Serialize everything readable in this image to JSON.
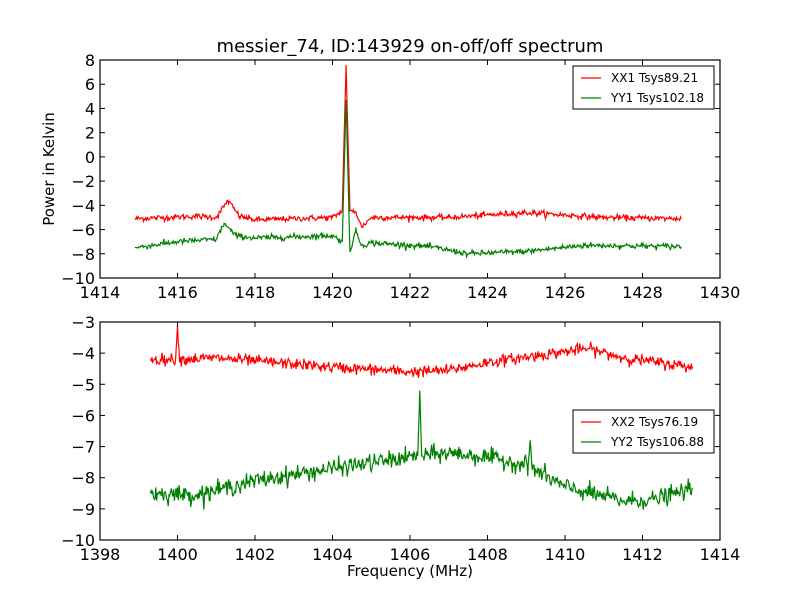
{
  "chart_data": [
    {
      "type": "line",
      "title": "messier_74, ID:143929 on-off/off spectrum",
      "xlabel": "",
      "ylabel": "Power in Kelvin",
      "xlim": [
        1414,
        1430
      ],
      "ylim": [
        -10,
        8
      ],
      "xticks": [
        "1414",
        "1416",
        "1418",
        "1420",
        "1422",
        "1424",
        "1426",
        "1428",
        "1430"
      ],
      "yticks": [
        "−10",
        "−8",
        "−6",
        "−4",
        "−2",
        "0",
        "2",
        "4",
        "6",
        "8"
      ],
      "grid": false,
      "legend_position": "top-right",
      "series": [
        {
          "name": "XX1 Tsys89.21",
          "color": "#ff0000",
          "noise": 0.12,
          "x_range": [
            1414.9,
            1429.0
          ],
          "trend": [
            [
              1414.9,
              -5.1
            ],
            [
              1416.5,
              -4.9
            ],
            [
              1417.0,
              -5.0
            ],
            [
              1417.3,
              -3.6
            ],
            [
              1417.6,
              -4.9
            ],
            [
              1418.0,
              -5.2
            ],
            [
              1420.0,
              -5.0
            ],
            [
              1420.25,
              -4.5
            ],
            [
              1420.35,
              7.6
            ],
            [
              1420.45,
              -4.5
            ],
            [
              1420.6,
              -4.5
            ],
            [
              1420.75,
              -5.8
            ],
            [
              1421.0,
              -5.0
            ],
            [
              1423.0,
              -5.0
            ],
            [
              1425.0,
              -4.6
            ],
            [
              1427.0,
              -5.0
            ],
            [
              1429.0,
              -5.1
            ]
          ]
        },
        {
          "name": "YY1 Tsys102.18",
          "color": "#008000",
          "noise": 0.12,
          "x_range": [
            1414.9,
            1429.0
          ],
          "trend": [
            [
              1414.9,
              -7.5
            ],
            [
              1416.0,
              -7.0
            ],
            [
              1417.0,
              -6.8
            ],
            [
              1417.2,
              -5.5
            ],
            [
              1417.5,
              -6.5
            ],
            [
              1418.0,
              -6.7
            ],
            [
              1420.0,
              -6.5
            ],
            [
              1420.25,
              -7.0
            ],
            [
              1420.35,
              4.7
            ],
            [
              1420.45,
              -7.8
            ],
            [
              1420.6,
              -6.1
            ],
            [
              1420.75,
              -7.3
            ],
            [
              1421.0,
              -7.1
            ],
            [
              1422.5,
              -7.4
            ],
            [
              1423.5,
              -8.0
            ],
            [
              1425.0,
              -7.8
            ],
            [
              1426.5,
              -7.3
            ],
            [
              1429.0,
              -7.4
            ]
          ]
        }
      ]
    },
    {
      "type": "line",
      "title": "",
      "xlabel": "Frequency (MHz)",
      "ylabel": "",
      "xlim": [
        1398,
        1414
      ],
      "ylim": [
        -10,
        -3
      ],
      "xticks": [
        "1398",
        "1400",
        "1402",
        "1404",
        "1406",
        "1408",
        "1410",
        "1412",
        "1414"
      ],
      "yticks": [
        "−10",
        "−9",
        "−8",
        "−7",
        "−6",
        "−5",
        "−4",
        "−3"
      ],
      "grid": false,
      "legend_position": "center-right",
      "series": [
        {
          "name": "XX2 Tsys76.19",
          "color": "#ff0000",
          "noise": 0.09,
          "x_range": [
            1399.3,
            1413.3
          ],
          "trend": [
            [
              1399.3,
              -4.2
            ],
            [
              1399.95,
              -4.2
            ],
            [
              1400.0,
              -3.1
            ],
            [
              1400.05,
              -4.2
            ],
            [
              1401.0,
              -4.15
            ],
            [
              1402.0,
              -4.25
            ],
            [
              1404.0,
              -4.45
            ],
            [
              1406.0,
              -4.6
            ],
            [
              1407.0,
              -4.55
            ],
            [
              1408.0,
              -4.3
            ],
            [
              1410.0,
              -3.95
            ],
            [
              1410.6,
              -3.85
            ],
            [
              1411.5,
              -4.15
            ],
            [
              1413.3,
              -4.45
            ]
          ]
        },
        {
          "name": "YY2 Tsys106.88",
          "color": "#008000",
          "noise": 0.14,
          "x_range": [
            1399.3,
            1413.3
          ],
          "trend": [
            [
              1399.3,
              -8.5
            ],
            [
              1400.5,
              -8.55
            ],
            [
              1402.0,
              -8.1
            ],
            [
              1404.0,
              -7.7
            ],
            [
              1406.2,
              -7.3
            ],
            [
              1406.25,
              -5.2
            ],
            [
              1406.3,
              -7.3
            ],
            [
              1407.0,
              -7.2
            ],
            [
              1408.0,
              -7.35
            ],
            [
              1409.05,
              -7.6
            ],
            [
              1409.1,
              -6.8
            ],
            [
              1409.15,
              -7.7
            ],
            [
              1410.0,
              -8.3
            ],
            [
              1411.5,
              -8.75
            ],
            [
              1412.3,
              -8.7
            ],
            [
              1413.3,
              -8.35
            ]
          ]
        }
      ]
    }
  ]
}
